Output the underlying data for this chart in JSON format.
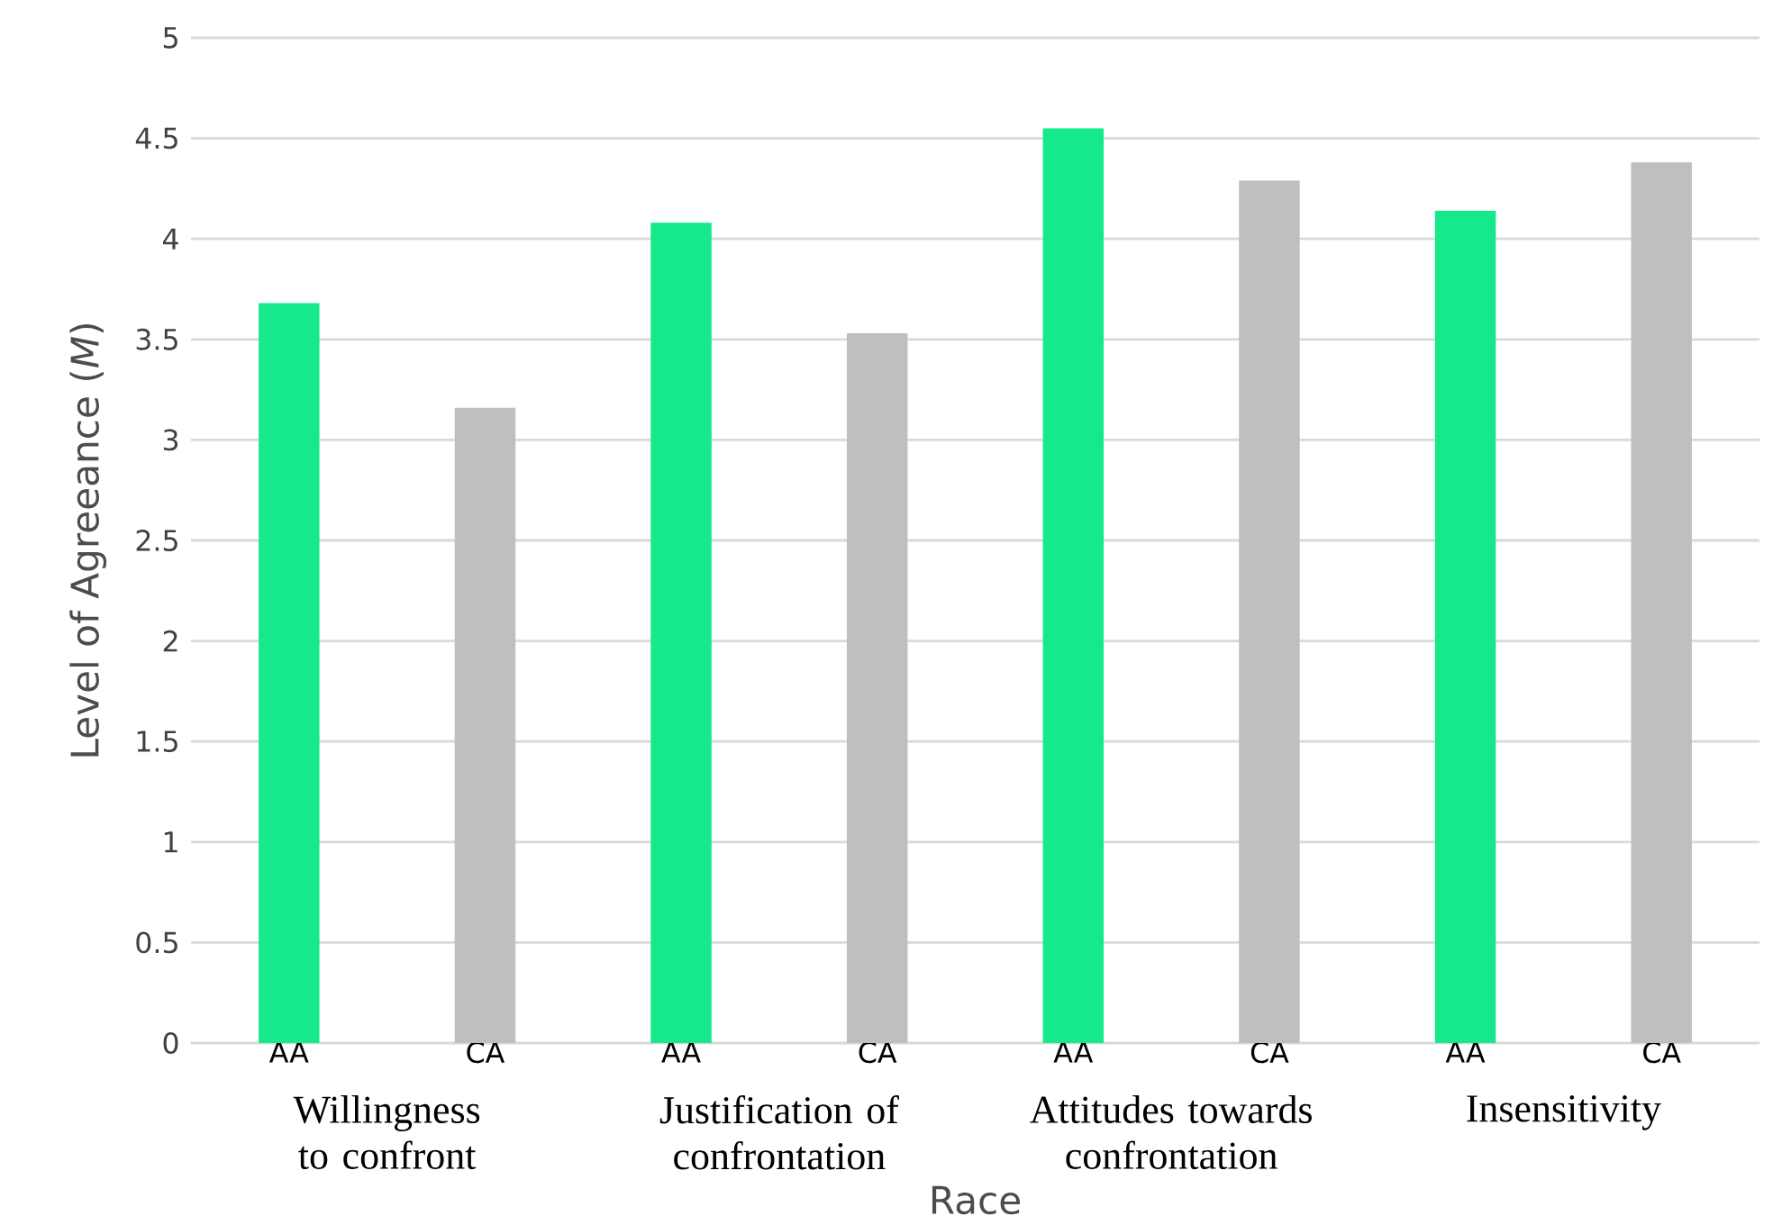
{
  "chart_data": {
    "type": "bar",
    "xlabel": "Race",
    "ylabel": "Level of Agreeance (*M*)",
    "categories": [
      "AA",
      "CA",
      "AA",
      "CA",
      "AA",
      "CA",
      "AA",
      "CA"
    ],
    "values": [
      3.68,
      3.16,
      4.08,
      3.53,
      4.55,
      4.29,
      4.14,
      4.38
    ],
    "colors": [
      "#16e98b",
      "#bfbfbf",
      "#16e98b",
      "#bfbfbf",
      "#16e98b",
      "#bfbfbf",
      "#16e98b",
      "#bfbfbf"
    ],
    "ylim": [
      0,
      5
    ],
    "yticks": [
      0,
      0.5,
      1,
      1.5,
      2,
      2.5,
      3,
      3.5,
      4,
      4.5,
      5
    ],
    "grid": "y",
    "annotations": [
      "Willingness to confront",
      "Justification of confrontation",
      "Attitudes towards confrontation",
      "Insensitivity"
    ]
  }
}
